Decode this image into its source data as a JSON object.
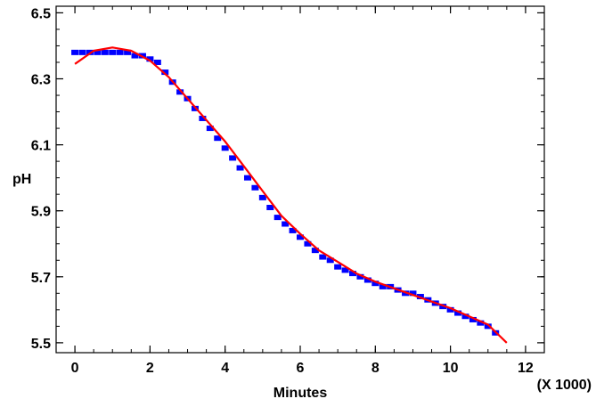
{
  "chart_data": {
    "type": "scatter",
    "title": "",
    "xlabel": "Minutes",
    "ylabel": "pH",
    "x_multiplier_label": "(X 1000)",
    "xlim": [
      -0.5,
      12.5
    ],
    "ylim": [
      5.47,
      6.52
    ],
    "x_ticks": [
      "0",
      "2",
      "4",
      "6",
      "8",
      "10",
      "12"
    ],
    "y_ticks": [
      "5.5",
      "5.7",
      "5.9",
      "6.1",
      "6.3",
      "6.5"
    ],
    "grid": false,
    "colors": {
      "points": "#0000ff",
      "fit": "#ff0000",
      "axes": "#000000"
    },
    "series": [
      {
        "kind": "points",
        "x": [
          0,
          0.2,
          0.4,
          0.6,
          0.8,
          1.0,
          1.2,
          1.4,
          1.6,
          1.8,
          2.0,
          2.2,
          2.4,
          2.6,
          2.8,
          3.0,
          3.2,
          3.4,
          3.6,
          3.8,
          4.0,
          4.2,
          4.4,
          4.6,
          4.8,
          5.0,
          5.2,
          5.4,
          5.6,
          5.8,
          6.0,
          6.2,
          6.4,
          6.6,
          6.8,
          7.0,
          7.2,
          7.4,
          7.6,
          7.8,
          8.0,
          8.2,
          8.4,
          8.6,
          8.8,
          9.0,
          9.2,
          9.4,
          9.6,
          9.8,
          10.0,
          10.2,
          10.4,
          10.6,
          10.8,
          11.0,
          11.2
        ],
        "y": [
          6.38,
          6.38,
          6.38,
          6.38,
          6.38,
          6.38,
          6.38,
          6.38,
          6.37,
          6.37,
          6.36,
          6.35,
          6.32,
          6.29,
          6.26,
          6.24,
          6.21,
          6.18,
          6.15,
          6.12,
          6.09,
          6.06,
          6.03,
          6.0,
          5.97,
          5.94,
          5.91,
          5.88,
          5.86,
          5.84,
          5.82,
          5.8,
          5.78,
          5.76,
          5.75,
          5.73,
          5.72,
          5.71,
          5.7,
          5.69,
          5.68,
          5.67,
          5.67,
          5.66,
          5.65,
          5.65,
          5.64,
          5.63,
          5.62,
          5.61,
          5.6,
          5.59,
          5.58,
          5.57,
          5.56,
          5.55,
          5.53
        ]
      },
      {
        "kind": "fit",
        "x": [
          0,
          0.5,
          1.0,
          1.5,
          2.0,
          2.5,
          3.0,
          3.5,
          4.0,
          4.5,
          5.0,
          5.5,
          6.0,
          6.5,
          7.0,
          7.5,
          8.0,
          8.5,
          9.0,
          9.5,
          10.0,
          10.5,
          11.0,
          11.5
        ],
        "y": [
          6.345,
          6.385,
          6.395,
          6.385,
          6.355,
          6.305,
          6.24,
          6.175,
          6.11,
          6.035,
          5.96,
          5.885,
          5.83,
          5.78,
          5.745,
          5.71,
          5.685,
          5.665,
          5.645,
          5.625,
          5.605,
          5.58,
          5.555,
          5.5
        ]
      }
    ]
  }
}
